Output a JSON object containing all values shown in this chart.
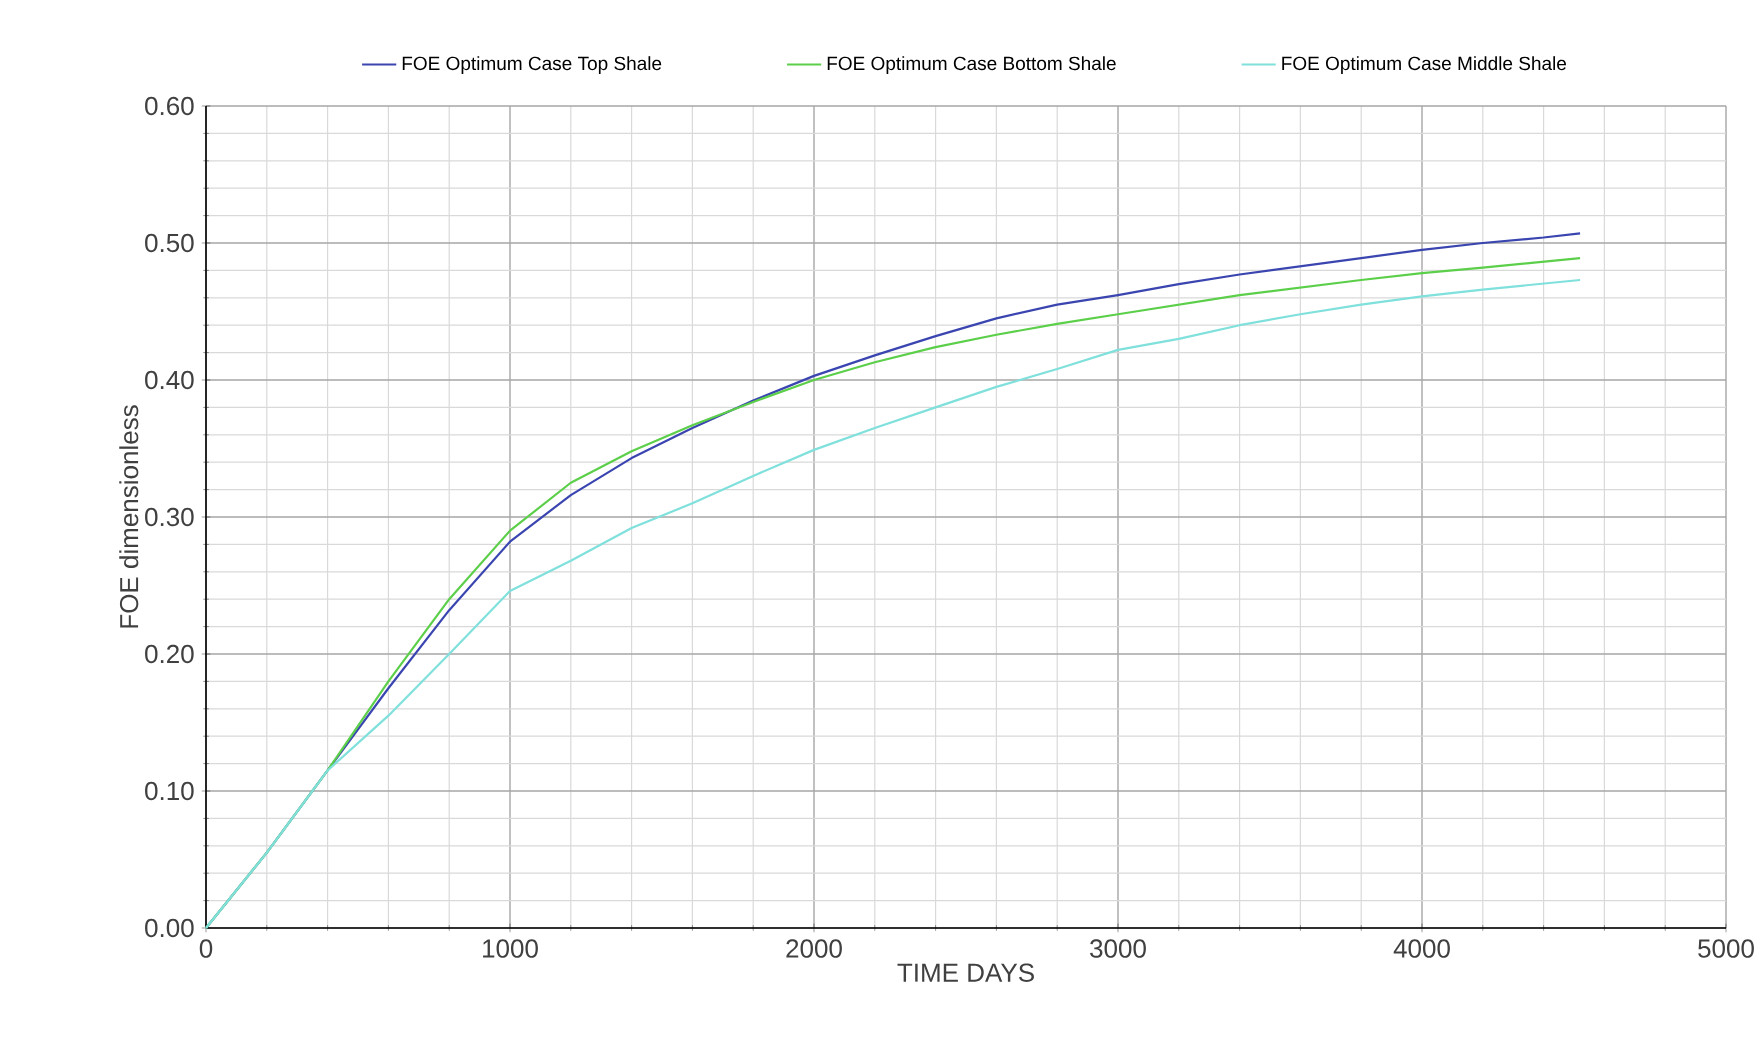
{
  "chart_data": {
    "type": "line",
    "xlabel": "TIME  DAYS",
    "ylabel": "FOE  dimensionless",
    "xlim": [
      0,
      5000
    ],
    "xticks": [
      0,
      1000,
      2000,
      3000,
      4000,
      5000
    ],
    "ylim": [
      0,
      0.6
    ],
    "yticks": [
      {
        "value": 0,
        "label": "0.00"
      },
      {
        "value": 0.1,
        "label": "0.10"
      },
      {
        "value": 0.2,
        "label": "0.20"
      },
      {
        "value": 0.3,
        "label": "0.30"
      },
      {
        "value": 0.4,
        "label": "0.40"
      },
      {
        "value": 0.5,
        "label": "0.50"
      },
      {
        "value": 0.6,
        "label": "0.60"
      }
    ],
    "grid": true,
    "legend": "top",
    "marker": "none",
    "line_style": "solid",
    "series": [
      {
        "name": "FOE Optimum Case Top Shale",
        "color": "#3a45b0",
        "x": [
          0,
          200,
          400,
          600,
          800,
          1000,
          1200,
          1400,
          1600,
          1800,
          2000,
          2200,
          2400,
          2600,
          2800,
          3000,
          3200,
          3400,
          3600,
          3800,
          4000,
          4200,
          4400,
          4520
        ],
        "values": [
          0,
          0.055,
          0.115,
          0.175,
          0.232,
          0.282,
          0.316,
          0.343,
          0.365,
          0.385,
          0.403,
          0.418,
          0.432,
          0.445,
          0.455,
          0.462,
          0.47,
          0.477,
          0.483,
          0.489,
          0.495,
          0.5,
          0.504,
          0.507
        ]
      },
      {
        "name": "FOE Optimum Case Bottom Shale",
        "color": "#5ccf4a",
        "x": [
          0,
          200,
          400,
          600,
          800,
          1000,
          1200,
          1400,
          1600,
          1800,
          2000,
          2200,
          2400,
          2600,
          2800,
          3000,
          3400,
          3800,
          4000,
          4200,
          4520
        ],
        "values": [
          0,
          0.055,
          0.115,
          0.18,
          0.24,
          0.29,
          0.325,
          0.348,
          0.367,
          0.384,
          0.4,
          0.413,
          0.424,
          0.433,
          0.441,
          0.448,
          0.462,
          0.473,
          0.478,
          0.482,
          0.489
        ]
      },
      {
        "name": "FOE Optimum Case Middle Shale",
        "color": "#7fe0dc",
        "x": [
          0,
          200,
          400,
          600,
          800,
          1000,
          1200,
          1400,
          1600,
          1800,
          2000,
          2200,
          2400,
          2600,
          2800,
          3000,
          3200,
          3400,
          3600,
          3800,
          4000,
          4200,
          4520
        ],
        "values": [
          0,
          0.055,
          0.115,
          0.155,
          0.2,
          0.246,
          0.268,
          0.292,
          0.31,
          0.33,
          0.349,
          0.365,
          0.38,
          0.395,
          0.408,
          0.422,
          0.43,
          0.44,
          0.448,
          0.455,
          0.461,
          0.466,
          0.473
        ]
      }
    ]
  }
}
